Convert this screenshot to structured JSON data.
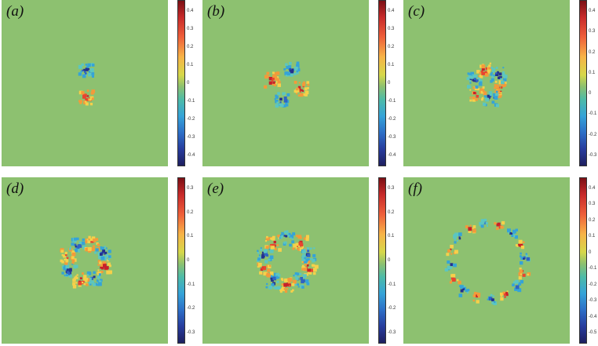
{
  "panels": [
    {
      "label": "(a)",
      "ticks": [
        "0.4",
        "0.3",
        "0.2",
        "0.1",
        "0",
        "-0.1",
        "-0.2",
        "-0.3",
        "-0.4"
      ],
      "lobes": 2,
      "radius": 17
    },
    {
      "label": "(b)",
      "ticks": [
        "0.4",
        "0.3",
        "0.2",
        "0.1",
        "0",
        "-0.1",
        "-0.2",
        "-0.3",
        "-0.4"
      ],
      "lobes": 4,
      "radius": 20
    },
    {
      "label": "(c)",
      "ticks": [
        "0.4",
        "0.3",
        "0.2",
        "0.1",
        "0",
        "-0.1",
        "-0.2",
        "-0.3"
      ],
      "lobes": 6,
      "radius": 18
    },
    {
      "label": "(d)",
      "ticks": [
        "0.3",
        "0.2",
        "0.1",
        "0",
        "-0.1",
        "-0.2",
        "-0.3"
      ],
      "lobes": 8,
      "radius": 24
    },
    {
      "label": "(e)",
      "ticks": [
        "0.3",
        "0.2",
        "0.1",
        "0",
        "-0.1",
        "-0.2",
        "-0.3"
      ],
      "lobes": 10,
      "radius": 30
    },
    {
      "label": "(f)",
      "ticks": [
        "0.4",
        "0.3",
        "0.2",
        "0.1",
        "0",
        "-0.1",
        "-0.2",
        "-0.3",
        "-0.4",
        "-0.5"
      ],
      "lobes": 16,
      "radius": 48
    }
  ]
}
